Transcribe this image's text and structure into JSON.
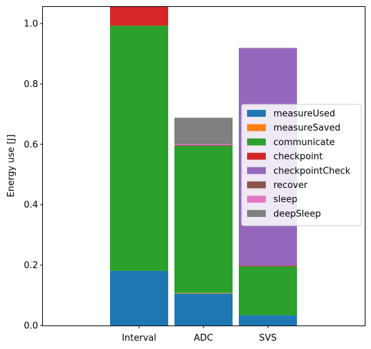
{
  "chart_data": {
    "type": "bar",
    "stacked": true,
    "categories": [
      "Interval",
      "ADC",
      "SVS"
    ],
    "xlabel": "",
    "ylabel": "Energy use [J]",
    "ylim": [
      0,
      1.055
    ],
    "yticks": [
      "0.0",
      "0.2",
      "0.4",
      "0.6",
      "0.8",
      "1.0"
    ],
    "legend_position": "center-right",
    "series": [
      {
        "name": "measureUsed",
        "color": "#1f77b4",
        "values": [
          0.181,
          0.106,
          0.034
        ]
      },
      {
        "name": "measureSaved",
        "color": "#ff7f0e",
        "values": [
          0.0,
          0.002,
          0.0
        ]
      },
      {
        "name": "communicate",
        "color": "#2ca02c",
        "values": [
          0.812,
          0.487,
          0.162
        ]
      },
      {
        "name": "checkpoint",
        "color": "#d62728",
        "values": [
          0.062,
          0.002,
          0.002
        ]
      },
      {
        "name": "checkpointCheck",
        "color": "#9467bd",
        "values": [
          0.0,
          0.002,
          0.72
        ]
      },
      {
        "name": "recover",
        "color": "#8c564b",
        "values": [
          0.0,
          0.0,
          0.001
        ]
      },
      {
        "name": "sleep",
        "color": "#e377c2",
        "values": [
          0.0,
          0.002,
          0.0
        ]
      },
      {
        "name": "deepSleep",
        "color": "#7f7f7f",
        "values": [
          0.0,
          0.087,
          0.0
        ]
      }
    ]
  }
}
